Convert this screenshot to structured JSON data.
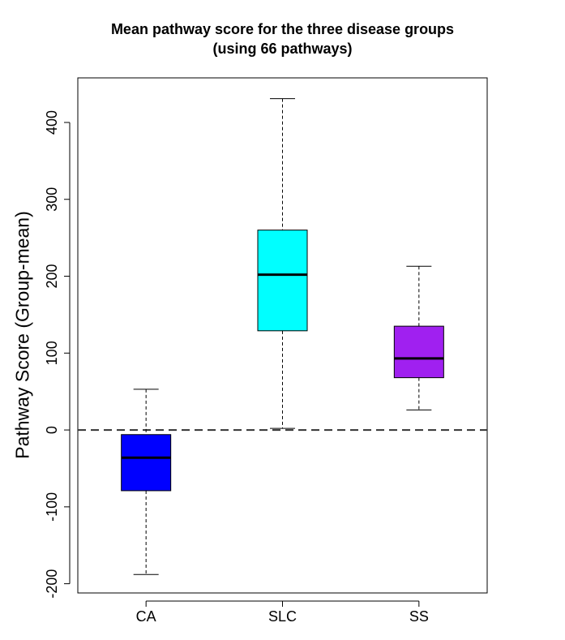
{
  "chart_data": {
    "type": "boxplot",
    "title": "Mean pathway score for the three disease groups",
    "subtitle": "(using 66 pathways)",
    "ylabel": "Pathway Score (Group-mean)",
    "xlabel": "",
    "ylim": [
      -212,
      458
    ],
    "yticks": [
      -200,
      -100,
      0,
      100,
      200,
      300,
      400
    ],
    "reference_line": 0,
    "groups": [
      {
        "label": "CA",
        "color": "#0000ff",
        "min": -188,
        "q1": -79,
        "median": -36,
        "q3": -6,
        "max": 53
      },
      {
        "label": "SLC",
        "color": "#00ffff",
        "min": 2,
        "q1": 129,
        "median": 202,
        "q3": 260,
        "max": 431
      },
      {
        "label": "SS",
        "color": "#a020f0",
        "min": 26,
        "q1": 68,
        "median": 93,
        "q3": 135,
        "max": 213
      }
    ]
  }
}
